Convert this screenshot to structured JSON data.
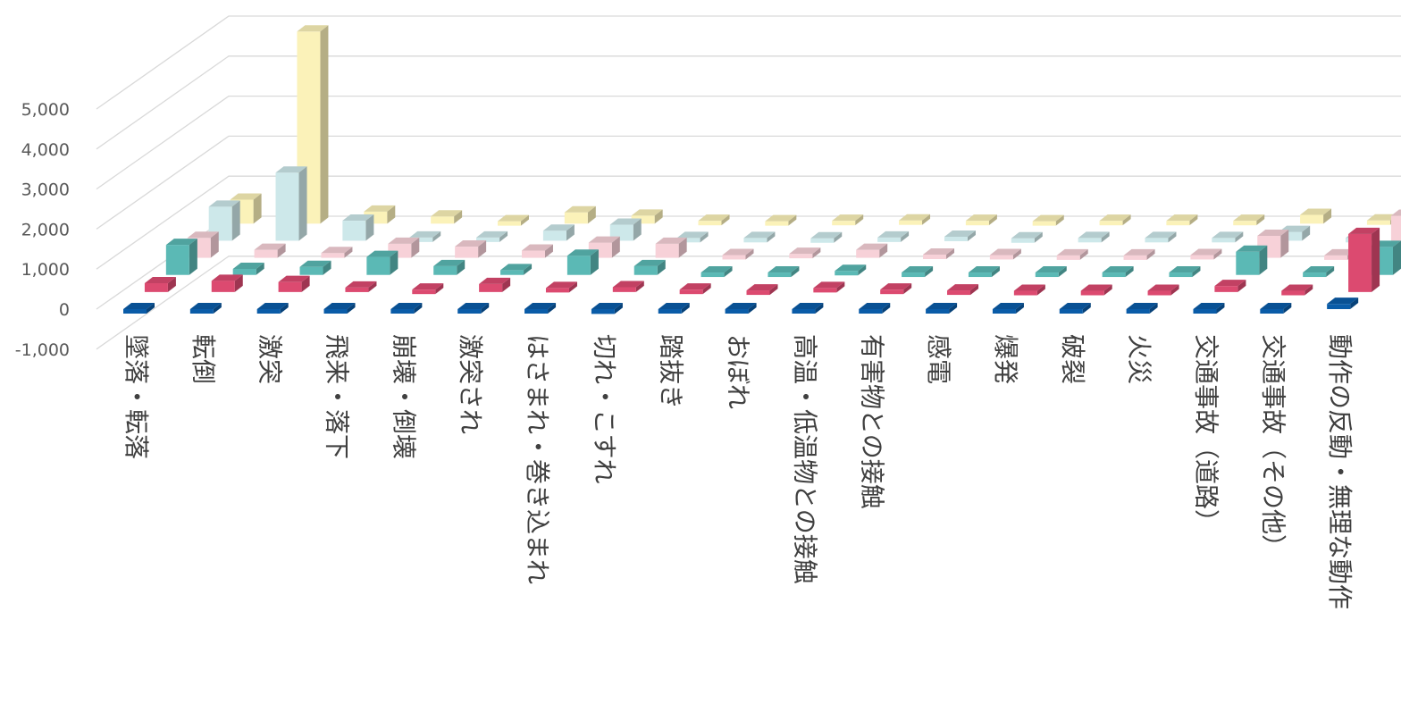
{
  "chart_data": {
    "type": "bar",
    "variant": "3d-column",
    "ylim": [
      -1000,
      5000
    ],
    "yticks": [
      -1000,
      0,
      1000,
      2000,
      3000,
      4000,
      5000
    ],
    "ytick_labels": [
      "-1,000",
      "0",
      "1,000",
      "2,000",
      "3,000",
      "4,000",
      "5,000"
    ],
    "grid": true,
    "categories": [
      "墜落・転落",
      "転倒",
      "激突",
      "飛来・落下",
      "崩壊・倒壊",
      "激突され",
      "はさまれ・巻き込まれ",
      "切れ・こすれ",
      "踏抜き",
      "おぼれ",
      "高温・低温物との接触",
      "有害物との接触",
      "感電",
      "爆発",
      "破裂",
      "火災",
      "交通事故（道路）",
      "交通事故（その他）",
      "動作の反動・無理な動作"
    ],
    "series": [
      {
        "color": "#0a5ca8",
        "values": [
          -50,
          -30,
          -30,
          -50,
          -30,
          -30,
          -60,
          -120,
          -30,
          -20,
          -30,
          -30,
          -20,
          -20,
          -20,
          -20,
          -20,
          -20,
          130
        ]
      },
      {
        "color": "#dc4a70",
        "values": [
          220,
          280,
          250,
          110,
          60,
          200,
          100,
          120,
          60,
          40,
          100,
          60,
          40,
          30,
          30,
          30,
          150,
          30,
          1450
        ]
      },
      {
        "color": "#5bb9b5",
        "values": [
          750,
          150,
          200,
          450,
          220,
          120,
          480,
          220,
          60,
          60,
          100,
          60,
          60,
          60,
          60,
          60,
          580,
          60,
          700
        ]
      },
      {
        "color": "#f7d1d8",
        "values": [
          500,
          200,
          120,
          350,
          280,
          180,
          380,
          350,
          70,
          100,
          200,
          80,
          70,
          60,
          60,
          70,
          550,
          60,
          1050
        ]
      },
      {
        "color": "#cde8ea",
        "values": [
          850,
          1700,
          500,
          80,
          80,
          250,
          400,
          70,
          70,
          60,
          80,
          100,
          60,
          70,
          70,
          70,
          220,
          70,
          1700
        ]
      },
      {
        "color": "#fbf2b9",
        "values": [
          600,
          4800,
          300,
          180,
          60,
          280,
          200,
          70,
          60,
          70,
          80,
          70,
          60,
          70,
          70,
          70,
          220,
          80,
          1800
        ]
      }
    ]
  }
}
